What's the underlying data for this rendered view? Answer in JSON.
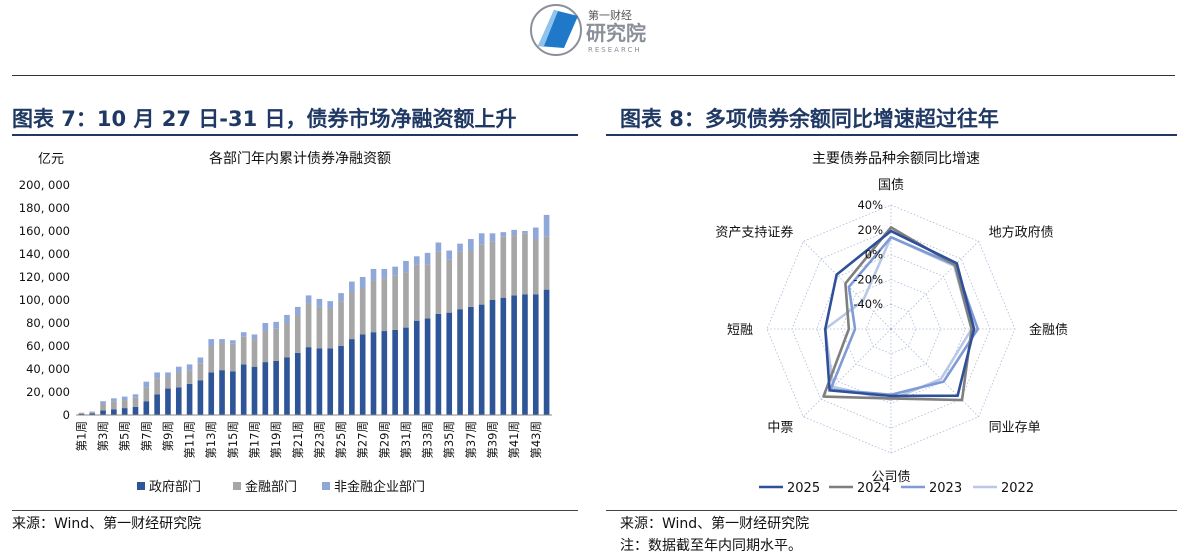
{
  "header": {
    "logo_cn": "第一财经",
    "logo_main": "研究院",
    "logo_sub": "RESEARCH"
  },
  "left_panel": {
    "title": "图表 7：10 月 27 日-31 日，债券市场净融资额上升",
    "source": "来源：Wind、第一财经研究院"
  },
  "right_panel": {
    "title": "图表 8：多项债券余额同比增速超过往年",
    "source": "来源：Wind、第一财经研究院",
    "note": "注：数据截至年内同期水平。"
  },
  "colors": {
    "gov": "#2e5597",
    "fin": "#a6a6a6",
    "nonfin": "#8fa7d9",
    "r2025": "#2f4f9a",
    "r2024": "#7f7f7f",
    "r2023": "#7f9bd6",
    "r2022": "#b9c8e6",
    "title": "#1f3864"
  },
  "chart_data": [
    {
      "type": "bar",
      "stacked": true,
      "title": "各部门年内累计债券净融资额",
      "ylabel": "亿元",
      "ylim": [
        0,
        200000
      ],
      "yticks": [
        "0",
        "20, 000",
        "40, 000",
        "60, 000",
        "80, 000",
        "100, 000",
        "120, 000",
        "140, 000",
        "160, 000",
        "180, 000",
        "200, 000"
      ],
      "categories": [
        "第1周",
        "第2周",
        "第3周",
        "第4周",
        "第5周",
        "第6周",
        "第7周",
        "第8周",
        "第9周",
        "第10周",
        "第11周",
        "第12周",
        "第13周",
        "第14周",
        "第15周",
        "第16周",
        "第17周",
        "第18周",
        "第19周",
        "第20周",
        "第21周",
        "第22周",
        "第23周",
        "第24周",
        "第25周",
        "第26周",
        "第27周",
        "第28周",
        "第29周",
        "第30周",
        "第31周",
        "第32周",
        "第33周",
        "第34周",
        "第35周",
        "第36周",
        "第37周",
        "第38周",
        "第39周",
        "第40周",
        "第41周",
        "第42周",
        "第43周",
        "第44周"
      ],
      "tick_labels": [
        "第1周",
        "第3周",
        "第5周",
        "第7周",
        "第9周",
        "第11周",
        "第13周",
        "第15周",
        "第17周",
        "第19周",
        "第21周",
        "第23周",
        "第25周",
        "第27周",
        "第29周",
        "第31周",
        "第33周",
        "第35周",
        "第37周",
        "第39周",
        "第41周",
        "第43周"
      ],
      "series": [
        {
          "name": "政府部门",
          "values": [
            1000,
            1500,
            4000,
            5000,
            6000,
            7000,
            12000,
            18000,
            23000,
            24000,
            27000,
            30000,
            37000,
            39000,
            38000,
            44000,
            42000,
            46000,
            47000,
            50000,
            54000,
            59000,
            58000,
            58000,
            60000,
            66000,
            70000,
            72000,
            73000,
            74000,
            76000,
            82000,
            84000,
            88000,
            89000,
            92000,
            94000,
            96000,
            100000,
            102000,
            104000,
            105000,
            105000,
            109000
          ]
        },
        {
          "name": "金融部门",
          "values": [
            1000,
            1000,
            6000,
            7000,
            7000,
            8000,
            12000,
            14000,
            10000,
            13000,
            12000,
            15000,
            23000,
            24000,
            24000,
            24000,
            24000,
            27000,
            28000,
            30000,
            33000,
            38000,
            36000,
            35000,
            39000,
            41000,
            40000,
            45000,
            46000,
            47000,
            48000,
            49000,
            47000,
            54000,
            46000,
            50000,
            49000,
            52000,
            51000,
            53000,
            52000,
            53000,
            48000,
            46000
          ]
        },
        {
          "name": "非金融企业部门",
          "values": [
            0,
            500,
            2000,
            2500,
            3000,
            3000,
            5000,
            5000,
            4000,
            5000,
            5000,
            5000,
            6000,
            3000,
            3000,
            4000,
            4000,
            7000,
            6000,
            7000,
            7000,
            7000,
            7000,
            6000,
            7000,
            9000,
            10000,
            10000,
            8000,
            8000,
            10000,
            7000,
            10000,
            8000,
            8000,
            7000,
            10000,
            10000,
            7000,
            4000,
            5000,
            2000,
            10000,
            19000
          ]
        }
      ]
    },
    {
      "type": "radar",
      "title": "主要债券品种余额同比增速",
      "categories": [
        "国债",
        "地方政府债",
        "金融债",
        "同业存单",
        "公司债",
        "中票",
        "短融",
        "资产支持证券"
      ],
      "rlim": [
        -60,
        40
      ],
      "rticks": [
        "40%",
        "20%",
        "0%",
        "-20%",
        "-40%"
      ],
      "series": [
        {
          "name": "2025",
          "values": [
            19,
            15,
            7,
            16,
            -6,
            10,
            -7,
            2
          ]
        },
        {
          "name": "2024",
          "values": [
            22,
            13,
            5,
            21,
            -4,
            17,
            -26,
            -8
          ]
        },
        {
          "name": "2023",
          "values": [
            14,
            13,
            10,
            0,
            -7,
            9,
            -31,
            -12
          ]
        },
        {
          "name": "2022",
          "values": [
            14,
            12,
            5,
            -3,
            -3,
            6,
            -7,
            -28
          ]
        }
      ]
    }
  ]
}
